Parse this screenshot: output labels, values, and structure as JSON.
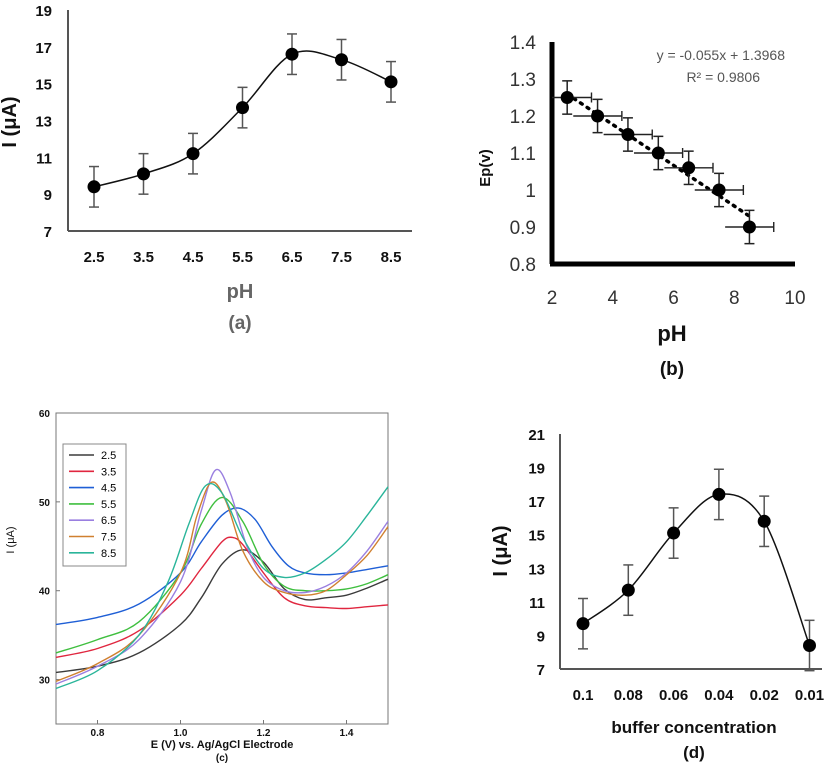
{
  "chart_data": [
    {
      "id": "a",
      "type": "line",
      "caption": "(a)",
      "xlabel": "pH",
      "ylabel": "I (μA)",
      "categories": [
        "2.5",
        "3.5",
        "4.5",
        "5.5",
        "6.5",
        "7.5",
        "8.5"
      ],
      "values": [
        9.4,
        10.1,
        11.2,
        13.7,
        16.6,
        16.3,
        15.1
      ],
      "errors": [
        1.1,
        1.1,
        1.1,
        1.1,
        1.1,
        1.1,
        1.1
      ],
      "ylim": [
        7,
        19
      ],
      "yticks": [
        "7",
        "9",
        "11",
        "13",
        "15",
        "17",
        "19"
      ],
      "grid": false
    },
    {
      "id": "b",
      "type": "scatter",
      "caption": "(b)",
      "xlabel": "pH",
      "ylabel": "Ep(v)",
      "x": [
        2.5,
        3.5,
        4.5,
        5.5,
        6.5,
        7.5,
        8.5
      ],
      "y": [
        1.25,
        1.2,
        1.15,
        1.1,
        1.06,
        1.0,
        0.9
      ],
      "xerr": 0.8,
      "yerr": [
        0.045,
        0.045,
        0.045,
        0.045,
        0.045,
        0.045,
        0.045
      ],
      "xlim": [
        2,
        10
      ],
      "ylim": [
        0.8,
        1.4
      ],
      "xticks": [
        "2",
        "4",
        "6",
        "8",
        "10"
      ],
      "yticks": [
        "0.8",
        "0.9",
        "1",
        "1.1",
        "1.2",
        "1.3",
        "1.4"
      ],
      "trendline": {
        "slope": -0.055,
        "intercept": 1.3968
      },
      "annotation_eq": "y = -0.055x + 1.3968",
      "annotation_r2": "R² = 0.9806"
    },
    {
      "id": "c",
      "type": "line",
      "caption": "(c)",
      "xlabel": "E (V) vs. Ag/AgCl Electrode",
      "ylabel": "I (μA)",
      "xlim": [
        0.7,
        1.5
      ],
      "ylim": [
        25,
        60
      ],
      "xticks": [
        "0.8",
        "1.0",
        "1.2",
        "1.4"
      ],
      "yticks": [
        "30",
        "40",
        "50",
        "60"
      ],
      "legend_position": "top-left",
      "series": [
        {
          "name": "2.5",
          "color": "#3b3b3b",
          "x": [
            0.7,
            0.8,
            0.9,
            1.0,
            1.05,
            1.1,
            1.15,
            1.2,
            1.25,
            1.3,
            1.35,
            1.4,
            1.45,
            1.5
          ],
          "y": [
            30.8,
            31.5,
            33.0,
            36.2,
            39.2,
            43.0,
            44.6,
            43.2,
            40.2,
            39.0,
            39.2,
            39.5,
            40.3,
            41.3
          ]
        },
        {
          "name": "3.5",
          "color": "#e0263f",
          "x": [
            0.7,
            0.8,
            0.9,
            1.0,
            1.05,
            1.1,
            1.125,
            1.15,
            1.2,
            1.25,
            1.3,
            1.35,
            1.4,
            1.45,
            1.5
          ],
          "y": [
            32.5,
            33.5,
            35.5,
            39.5,
            42.5,
            45.5,
            46.0,
            45.2,
            42.0,
            39.2,
            38.3,
            38.1,
            38.0,
            38.2,
            38.4
          ]
        },
        {
          "name": "4.5",
          "color": "#1f5fd6",
          "x": [
            0.7,
            0.8,
            0.9,
            1.0,
            1.05,
            1.1,
            1.14,
            1.18,
            1.22,
            1.26,
            1.3,
            1.35,
            1.4,
            1.45,
            1.5
          ],
          "y": [
            36.2,
            37.0,
            38.5,
            42.0,
            45.5,
            48.5,
            49.3,
            48.0,
            45.0,
            42.8,
            42.0,
            41.8,
            42.0,
            42.4,
            42.8
          ]
        },
        {
          "name": "5.5",
          "color": "#3fbf3f",
          "x": [
            0.7,
            0.8,
            0.9,
            1.0,
            1.05,
            1.1,
            1.15,
            1.2,
            1.25,
            1.3,
            1.35,
            1.4,
            1.45,
            1.5
          ],
          "y": [
            33.0,
            34.5,
            36.5,
            42.0,
            47.5,
            50.5,
            47.8,
            43.0,
            40.5,
            40.0,
            40.0,
            40.2,
            40.8,
            41.8
          ]
        },
        {
          "name": "6.5",
          "color": "#9a7fe0",
          "x": [
            0.7,
            0.8,
            0.9,
            1.0,
            1.05,
            1.085,
            1.12,
            1.16,
            1.2,
            1.25,
            1.3,
            1.35,
            1.4,
            1.45,
            1.5
          ],
          "y": [
            29.5,
            31.5,
            34.5,
            41.0,
            49.0,
            53.6,
            51.0,
            45.0,
            41.5,
            40.0,
            39.8,
            40.5,
            42.0,
            44.5,
            47.8
          ]
        },
        {
          "name": "7.5",
          "color": "#d08030",
          "x": [
            0.7,
            0.8,
            0.9,
            1.0,
            1.04,
            1.075,
            1.11,
            1.15,
            1.2,
            1.25,
            1.3,
            1.35,
            1.4,
            1.45,
            1.5
          ],
          "y": [
            29.8,
            31.8,
            35.0,
            42.0,
            48.5,
            52.2,
            50.0,
            44.5,
            41.0,
            39.8,
            39.5,
            40.0,
            41.8,
            44.0,
            47.2
          ]
        },
        {
          "name": "8.5",
          "color": "#2ab59a",
          "x": [
            0.7,
            0.8,
            0.9,
            0.97,
            1.02,
            1.06,
            1.1,
            1.15,
            1.2,
            1.25,
            1.3,
            1.35,
            1.4,
            1.45,
            1.5
          ],
          "y": [
            29.0,
            31.0,
            35.0,
            41.0,
            47.5,
            51.8,
            51.0,
            46.0,
            42.5,
            41.5,
            42.0,
            43.5,
            45.5,
            48.5,
            51.7
          ]
        }
      ]
    },
    {
      "id": "d",
      "type": "line",
      "caption": "(d)",
      "xlabel": "buffer concentration",
      "ylabel": "I (μA)",
      "categories": [
        "0.1",
        "0.08",
        "0.06",
        "0.04",
        "0.02",
        "0.01"
      ],
      "values": [
        9.7,
        11.7,
        15.1,
        17.4,
        15.8,
        8.4
      ],
      "errors": [
        1.5,
        1.5,
        1.5,
        1.5,
        1.5,
        1.5
      ],
      "ylim": [
        7,
        21
      ],
      "yticks": [
        "7",
        "9",
        "11",
        "13",
        "15",
        "17",
        "19",
        "21"
      ],
      "grid": false
    }
  ]
}
